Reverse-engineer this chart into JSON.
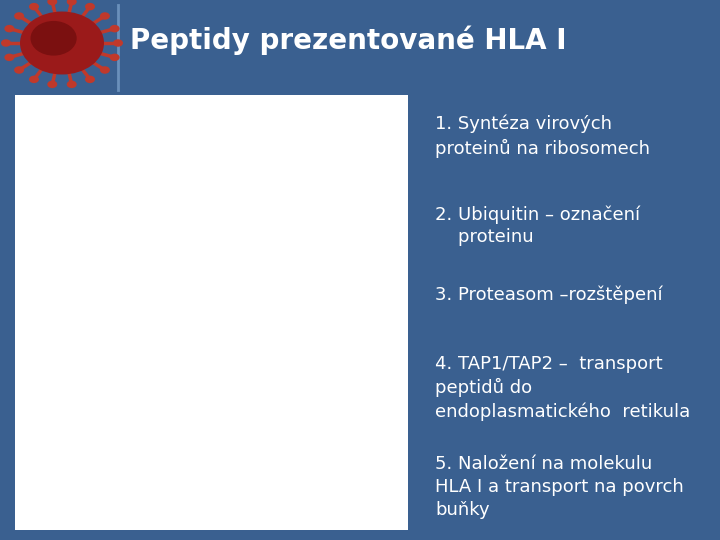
{
  "title": "Peptidy prezentované HLA I",
  "title_fontsize": 20,
  "title_color": "#FFFFFF",
  "background_color": "#3A6090",
  "text_items": [
    "1. Syntéza virových\nproteinů na ribosomech",
    "2. Ubiquitin – označení\n    proteinu",
    "3. Proteasom –rozštěpení",
    "4. TAP1/TAP2 –  transport\npeptidů do\nendoplasmatického  retikula",
    "5. Naložení na molekulu\nHLA I a transport na povrch\nbuňky"
  ],
  "text_color": "#FFFFFF",
  "text_fontsize": 13,
  "separator_color": "#6A90BB",
  "white_panel_color": "#FFFFFF",
  "virus_body_color": "#9B1A1A",
  "virus_spike_color": "#C0392B"
}
